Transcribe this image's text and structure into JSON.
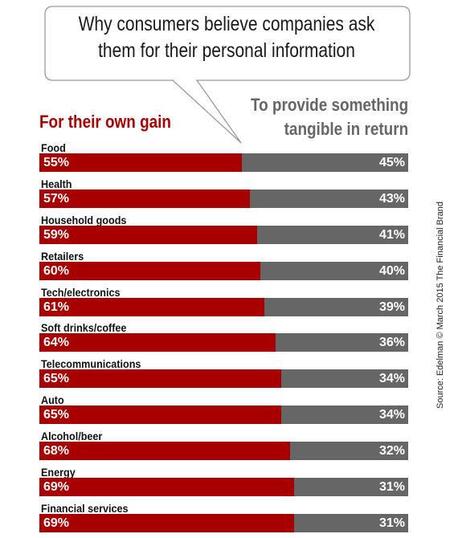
{
  "title_lines": [
    "Why consumers believe companies ask",
    "them for their personal information"
  ],
  "legend": {
    "left": "For their own gain",
    "right_lines": [
      "To provide something",
      "tangible in return"
    ]
  },
  "source": "Source: Edelman © March 2015 The Financial Brand",
  "colors": {
    "own_gain": "#a80000",
    "tangible": "#666666"
  },
  "chart_data": {
    "type": "bar",
    "orientation": "horizontal-stacked-100",
    "title": "Why consumers believe companies ask them for their personal information",
    "categories": [
      "Food",
      "Health",
      "Household goods",
      "Retailers",
      "Tech/electronics",
      "Soft drinks/coffee",
      "Telecommunications",
      "Auto",
      "Alcohol/beer",
      "Energy",
      "Financial services"
    ],
    "series": [
      {
        "name": "For their own gain",
        "values": [
          55,
          57,
          59,
          60,
          61,
          64,
          65,
          65,
          68,
          69,
          69
        ],
        "labels": [
          "55%",
          "57%",
          "59%",
          "60%",
          "61%",
          "64%",
          "65%",
          "65%",
          "68%",
          "69%",
          "69%"
        ]
      },
      {
        "name": "To provide something tangible in return",
        "values": [
          45,
          43,
          41,
          40,
          39,
          36,
          34,
          34,
          32,
          31,
          31
        ],
        "labels": [
          "45%",
          "43%",
          "41%",
          "40%",
          "39%",
          "36%",
          "34%",
          "34%",
          "32%",
          "31%",
          "31%"
        ]
      }
    ],
    "xlim": [
      0,
      100
    ],
    "grid": false,
    "legend_placement": "top"
  }
}
